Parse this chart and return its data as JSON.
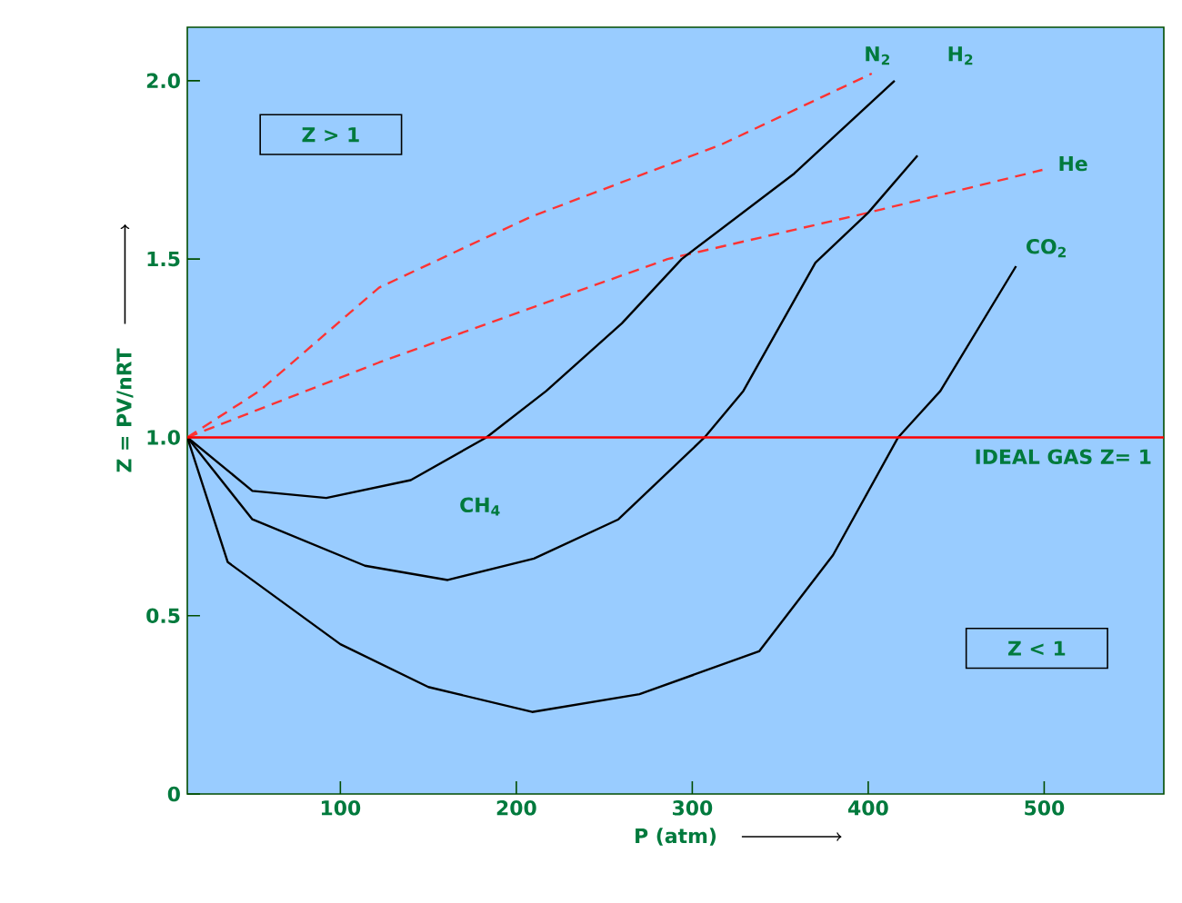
{
  "chart_data": {
    "type": "line",
    "xlabel": "P (atm)",
    "ylabel": "Z = PV/nRT",
    "xlim": [
      13,
      568
    ],
    "ylim": [
      0,
      2.15
    ],
    "xticks": [
      100,
      200,
      300,
      400,
      500
    ],
    "yticks": [
      {
        "value": 0,
        "label": "0"
      },
      {
        "value": 0.5,
        "label": "0.5"
      },
      {
        "value": 1,
        "label": "1.0"
      },
      {
        "value": 1.5,
        "label": "1.5"
      },
      {
        "value": 2,
        "label": "2.0"
      }
    ],
    "grid": false,
    "marker": "none",
    "series": [
      {
        "color": "#ff3333",
        "line_style": "dashed",
        "x": [
          13,
          54,
          122,
          174,
          209,
          316,
          402
        ],
        "values": [
          1.0,
          1.13,
          1.42,
          1.54,
          1.62,
          1.82,
          2.02
        ]
      },
      {
        "color": "#ff3333",
        "line_style": "dashed",
        "x": [
          13,
          122,
          286,
          400,
          499
        ],
        "values": [
          1.0,
          1.21,
          1.5,
          1.63,
          1.75
        ]
      },
      {
        "color": "#000000",
        "line_style": "solid",
        "x": [
          13,
          50,
          92,
          140,
          183,
          217,
          260,
          294,
          358,
          415
        ],
        "values": [
          1.0,
          0.85,
          0.83,
          0.88,
          1.0,
          1.13,
          1.32,
          1.5,
          1.74,
          2.0
        ]
      },
      {
        "color": "#000000",
        "line_style": "solid",
        "x": [
          13,
          50,
          114,
          161,
          210,
          258,
          307,
          329,
          370,
          400,
          428
        ],
        "values": [
          1.0,
          0.77,
          0.64,
          0.6,
          0.66,
          0.77,
          1.0,
          1.13,
          1.49,
          1.63,
          1.79
        ]
      },
      {
        "color": "#000000",
        "line_style": "solid",
        "x": [
          13,
          36,
          100,
          150,
          209,
          270,
          338,
          380,
          417,
          441,
          484
        ],
        "values": [
          1.0,
          0.65,
          0.42,
          0.3,
          0.23,
          0.28,
          0.4,
          0.67,
          1.0,
          1.13,
          1.48
        ]
      }
    ],
    "ref_lines": [
      {
        "axis": "y",
        "value": 1,
        "label": "IDEAL GAS Z= 1",
        "color": "#ff0000",
        "line_style": "solid"
      }
    ],
    "annotations": [
      "N$_{2}$",
      "H$_{2}$",
      "He",
      "CO$_{2}$",
      "CH$_{4}$",
      "Z > 1",
      "Z < 1"
    ]
  }
}
